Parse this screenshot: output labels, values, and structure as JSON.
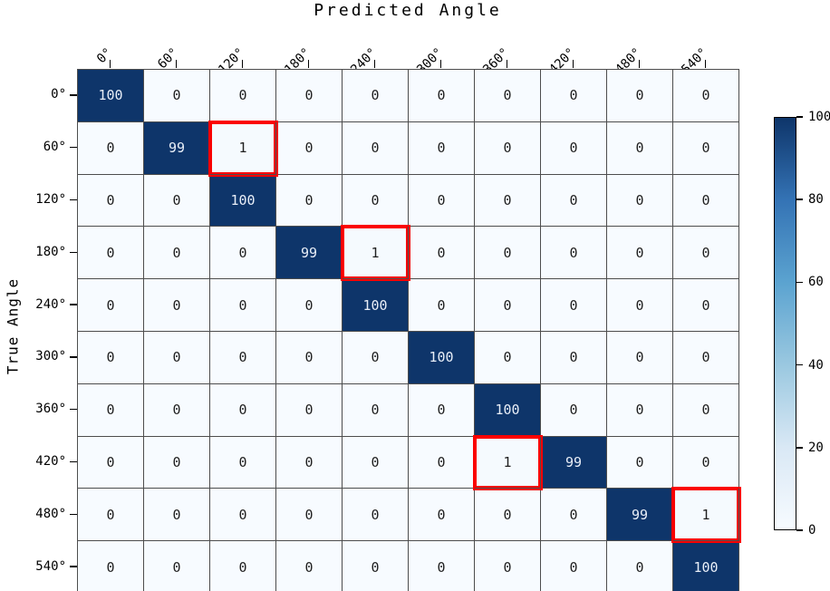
{
  "title": "Predicted Angle",
  "ylabel": "True Angle",
  "chart_data": {
    "type": "heatmap",
    "title": "Predicted Angle",
    "xlabel": "Predicted Angle",
    "ylabel": "True Angle",
    "x_categories": [
      "0°",
      "60°",
      "120°",
      "180°",
      "240°",
      "300°",
      "360°",
      "420°",
      "480°",
      "540°"
    ],
    "y_categories": [
      "0°",
      "60°",
      "120°",
      "180°",
      "240°",
      "300°",
      "360°",
      "420°",
      "480°",
      "540°"
    ],
    "matrix": [
      [
        100,
        0,
        0,
        0,
        0,
        0,
        0,
        0,
        0,
        0
      ],
      [
        0,
        99,
        1,
        0,
        0,
        0,
        0,
        0,
        0,
        0
      ],
      [
        0,
        0,
        100,
        0,
        0,
        0,
        0,
        0,
        0,
        0
      ],
      [
        0,
        0,
        0,
        99,
        1,
        0,
        0,
        0,
        0,
        0
      ],
      [
        0,
        0,
        0,
        0,
        100,
        0,
        0,
        0,
        0,
        0
      ],
      [
        0,
        0,
        0,
        0,
        0,
        100,
        0,
        0,
        0,
        0
      ],
      [
        0,
        0,
        0,
        0,
        0,
        0,
        100,
        0,
        0,
        0
      ],
      [
        0,
        0,
        0,
        0,
        0,
        0,
        1,
        99,
        0,
        0
      ],
      [
        0,
        0,
        0,
        0,
        0,
        0,
        0,
        0,
        99,
        1
      ],
      [
        0,
        0,
        0,
        0,
        0,
        0,
        0,
        0,
        0,
        100
      ]
    ],
    "highlighted_cells": [
      [
        1,
        2
      ],
      [
        3,
        4
      ],
      [
        7,
        6
      ],
      [
        8,
        9
      ]
    ],
    "colorbar": {
      "min": 0,
      "max": 100,
      "ticks": [
        100,
        80,
        60,
        40,
        20,
        0
      ]
    },
    "colors": {
      "cell_high": "#0e356a",
      "cell_low": "#f7fbff",
      "cell_low_one": "#f5fafe",
      "text_on_dark": "#e8eef7",
      "text_on_light": "#1f1f1f",
      "highlight_border": "#fb0000",
      "gradient_stops": [
        "#0e356a",
        "#3473b5",
        "#5ba3d0",
        "#9ac8e0",
        "#d9e8f5",
        "#f7fbff"
      ]
    }
  }
}
